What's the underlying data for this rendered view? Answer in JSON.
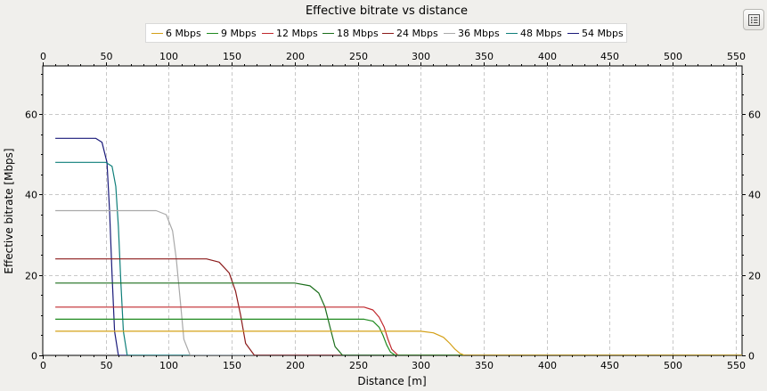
{
  "chart_data": {
    "type": "line",
    "title": "Effective bitrate vs distance",
    "xlabel": "Distance [m]",
    "ylabel": "Effective bitrate [Mbps]",
    "xlim": [
      0,
      555
    ],
    "ylim": [
      0,
      72
    ],
    "x_ticks": [
      0,
      50,
      100,
      150,
      200,
      250,
      300,
      350,
      400,
      450,
      500,
      550
    ],
    "y_ticks": [
      0,
      20,
      40,
      60
    ],
    "grid": true,
    "legend_position": "top",
    "series": [
      {
        "name": "6 Mbps",
        "color": "#d4a017",
        "x": [
          10,
          300,
          310,
          318,
          323,
          327,
          331,
          335,
          600
        ],
        "y": [
          6,
          6,
          5.6,
          4.5,
          3.0,
          1.6,
          0.5,
          0,
          0
        ]
      },
      {
        "name": "9 Mbps",
        "color": "#1f8a1f",
        "x": [
          10,
          255,
          262,
          267,
          270,
          273,
          276,
          280,
          600
        ],
        "y": [
          9,
          9,
          8.5,
          7.0,
          5.0,
          2.6,
          0.8,
          0,
          0
        ]
      },
      {
        "name": "12 Mbps",
        "color": "#c0282d",
        "x": [
          10,
          255,
          262,
          267,
          271,
          274,
          277,
          282,
          600
        ],
        "y": [
          12,
          12,
          11.3,
          9.5,
          7.0,
          4.0,
          1.5,
          0,
          0
        ]
      },
      {
        "name": "18 Mbps",
        "color": "#1b6e1b",
        "x": [
          10,
          200,
          212,
          219,
          224,
          228,
          232,
          238,
          600
        ],
        "y": [
          18,
          18,
          17.3,
          15.5,
          12.0,
          7.0,
          2.2,
          0,
          0
        ]
      },
      {
        "name": "24 Mbps",
        "color": "#8b1a1a",
        "x": [
          10,
          130,
          140,
          148,
          153,
          157,
          161,
          168,
          600
        ],
        "y": [
          24,
          24,
          23.2,
          20.5,
          16.0,
          10.0,
          3.0,
          0,
          0
        ]
      },
      {
        "name": "36 Mbps",
        "color": "#a9a9a9",
        "x": [
          10,
          90,
          98,
          103,
          106,
          109,
          112,
          117,
          600
        ],
        "y": [
          36,
          36,
          35.0,
          31.0,
          24.0,
          14.0,
          4.0,
          0,
          0
        ]
      },
      {
        "name": "48 Mbps",
        "color": "#0f7f7a",
        "x": [
          10,
          50,
          55,
          58,
          60,
          62,
          64,
          67,
          600
        ],
        "y": [
          48,
          48,
          47.0,
          42.0,
          32.0,
          18.0,
          6.0,
          0,
          0
        ]
      },
      {
        "name": "54 Mbps",
        "color": "#1a1a7a",
        "x": [
          10,
          42,
          47,
          51,
          53,
          55,
          57,
          60,
          600
        ],
        "y": [
          54,
          54,
          53.0,
          48.0,
          36.0,
          20.0,
          6.0,
          0,
          0
        ]
      }
    ]
  },
  "toolbar": {
    "options_icon": "list-icon"
  }
}
